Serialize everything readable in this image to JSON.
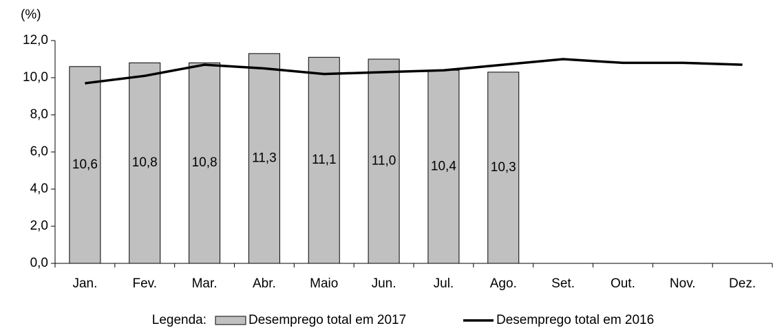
{
  "chart_data": {
    "type": "bar",
    "ylabel": "(%)",
    "categories": [
      "Jan.",
      "Fev.",
      "Mar.",
      "Abr.",
      "Maio",
      "Jun.",
      "Jul.",
      "Ago.",
      "Set.",
      "Out.",
      "Nov.",
      "Dez."
    ],
    "series": [
      {
        "name": "Desemprego total em 2017",
        "type": "bar",
        "color": "#c0c0c0",
        "values": [
          10.6,
          10.8,
          10.8,
          11.3,
          11.1,
          11.0,
          10.4,
          10.3,
          null,
          null,
          null,
          null
        ],
        "value_labels": [
          "10,6",
          "10,8",
          "10,8",
          "11,3",
          "11,1",
          "11,0",
          "10,4",
          "10,3",
          null,
          null,
          null,
          null
        ]
      },
      {
        "name": "Desemprego total em 2016",
        "type": "line",
        "color": "#000000",
        "values": [
          9.7,
          10.1,
          10.7,
          10.5,
          10.2,
          10.3,
          10.4,
          10.7,
          11.0,
          10.8,
          10.8,
          10.7
        ]
      }
    ],
    "ylim": [
      0,
      12
    ],
    "yticks": [
      {
        "value": 0,
        "label": "0,0"
      },
      {
        "value": 2,
        "label": "2,0"
      },
      {
        "value": 4,
        "label": "4,0"
      },
      {
        "value": 6,
        "label": "6,0"
      },
      {
        "value": 8,
        "label": "8,0"
      },
      {
        "value": 10,
        "label": "10,0"
      },
      {
        "value": 12,
        "label": "12,0"
      }
    ],
    "grid": false,
    "legend_title": "Legenda:",
    "legend_position": "bottom"
  }
}
